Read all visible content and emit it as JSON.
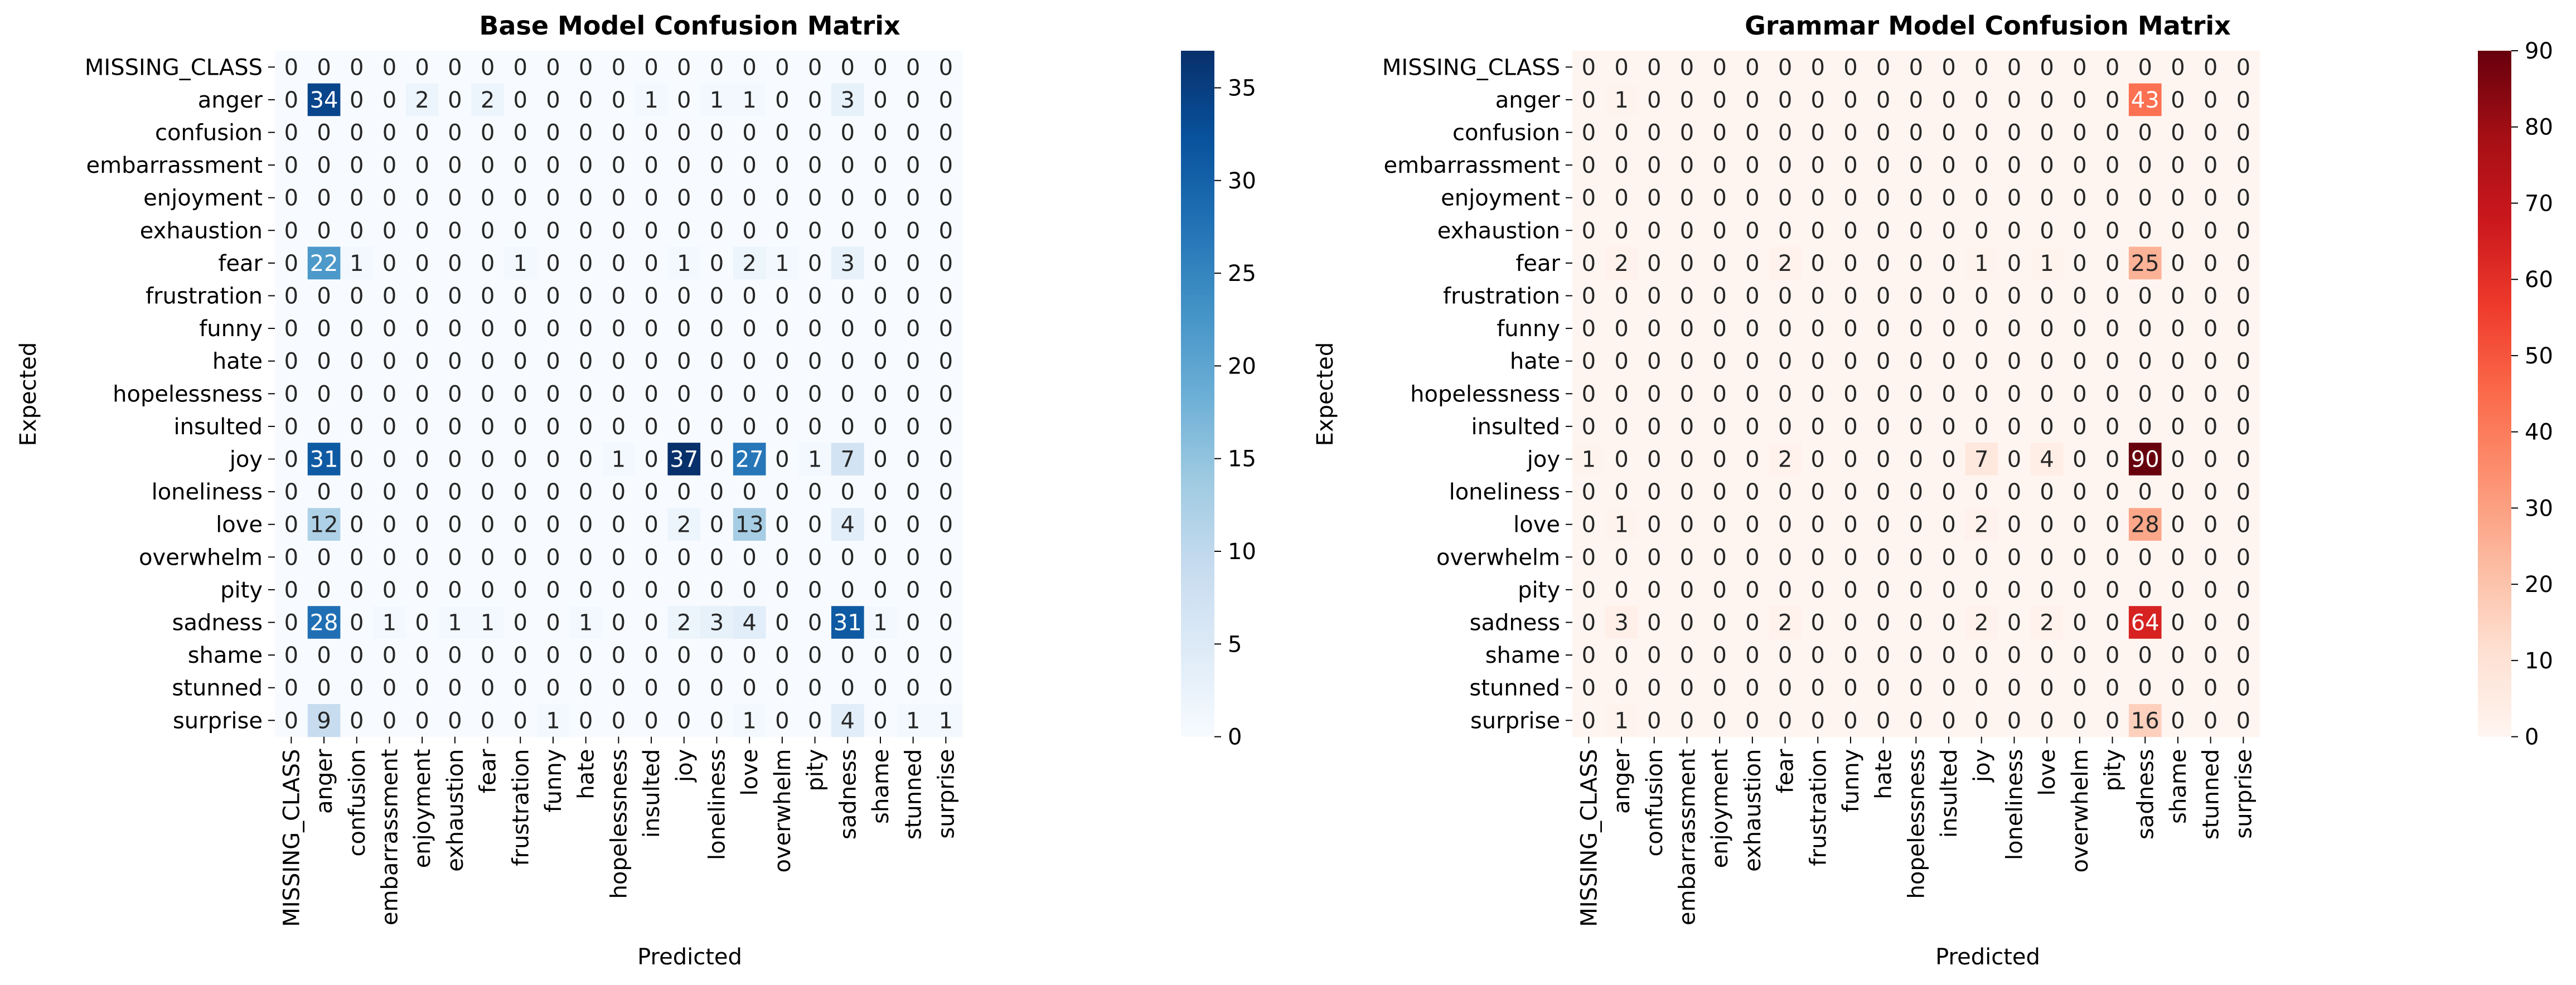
{
  "chart_data": [
    {
      "type": "heatmap",
      "title": "Base Model Confusion Matrix",
      "xlabel": "Predicted",
      "ylabel": "Expected",
      "colormap": "Blues",
      "colors": {
        "low": "#f7fbff",
        "high": "#08306b"
      },
      "vmin": 0,
      "vmax": 37,
      "colorbar_ticks": [
        0,
        5,
        10,
        15,
        20,
        25,
        30,
        35
      ],
      "x_labels": [
        "MISSING_CLASS",
        "anger",
        "confusion",
        "embarrassment",
        "enjoyment",
        "exhaustion",
        "fear",
        "frustration",
        "funny",
        "hate",
        "hopelessness",
        "insulted",
        "joy",
        "loneliness",
        "love",
        "overwhelm",
        "pity",
        "sadness",
        "shame",
        "stunned",
        "surprise"
      ],
      "y_labels": [
        "MISSING_CLASS",
        "anger",
        "confusion",
        "embarrassment",
        "enjoyment",
        "exhaustion",
        "fear",
        "frustration",
        "funny",
        "hate",
        "hopelessness",
        "insulted",
        "joy",
        "loneliness",
        "love",
        "overwhelm",
        "pity",
        "sadness",
        "shame",
        "stunned",
        "surprise"
      ],
      "values": [
        [
          0,
          0,
          0,
          0,
          0,
          0,
          0,
          0,
          0,
          0,
          0,
          0,
          0,
          0,
          0,
          0,
          0,
          0,
          0,
          0,
          0
        ],
        [
          0,
          34,
          0,
          0,
          2,
          0,
          2,
          0,
          0,
          0,
          0,
          1,
          0,
          1,
          1,
          0,
          0,
          3,
          0,
          0,
          0
        ],
        [
          0,
          0,
          0,
          0,
          0,
          0,
          0,
          0,
          0,
          0,
          0,
          0,
          0,
          0,
          0,
          0,
          0,
          0,
          0,
          0,
          0
        ],
        [
          0,
          0,
          0,
          0,
          0,
          0,
          0,
          0,
          0,
          0,
          0,
          0,
          0,
          0,
          0,
          0,
          0,
          0,
          0,
          0,
          0
        ],
        [
          0,
          0,
          0,
          0,
          0,
          0,
          0,
          0,
          0,
          0,
          0,
          0,
          0,
          0,
          0,
          0,
          0,
          0,
          0,
          0,
          0
        ],
        [
          0,
          0,
          0,
          0,
          0,
          0,
          0,
          0,
          0,
          0,
          0,
          0,
          0,
          0,
          0,
          0,
          0,
          0,
          0,
          0,
          0
        ],
        [
          0,
          22,
          1,
          0,
          0,
          0,
          0,
          1,
          0,
          0,
          0,
          0,
          1,
          0,
          2,
          1,
          0,
          3,
          0,
          0,
          0
        ],
        [
          0,
          0,
          0,
          0,
          0,
          0,
          0,
          0,
          0,
          0,
          0,
          0,
          0,
          0,
          0,
          0,
          0,
          0,
          0,
          0,
          0
        ],
        [
          0,
          0,
          0,
          0,
          0,
          0,
          0,
          0,
          0,
          0,
          0,
          0,
          0,
          0,
          0,
          0,
          0,
          0,
          0,
          0,
          0
        ],
        [
          0,
          0,
          0,
          0,
          0,
          0,
          0,
          0,
          0,
          0,
          0,
          0,
          0,
          0,
          0,
          0,
          0,
          0,
          0,
          0,
          0
        ],
        [
          0,
          0,
          0,
          0,
          0,
          0,
          0,
          0,
          0,
          0,
          0,
          0,
          0,
          0,
          0,
          0,
          0,
          0,
          0,
          0,
          0
        ],
        [
          0,
          0,
          0,
          0,
          0,
          0,
          0,
          0,
          0,
          0,
          0,
          0,
          0,
          0,
          0,
          0,
          0,
          0,
          0,
          0,
          0
        ],
        [
          0,
          31,
          0,
          0,
          0,
          0,
          0,
          0,
          0,
          0,
          1,
          0,
          37,
          0,
          27,
          0,
          1,
          7,
          0,
          0,
          0
        ],
        [
          0,
          0,
          0,
          0,
          0,
          0,
          0,
          0,
          0,
          0,
          0,
          0,
          0,
          0,
          0,
          0,
          0,
          0,
          0,
          0,
          0
        ],
        [
          0,
          12,
          0,
          0,
          0,
          0,
          0,
          0,
          0,
          0,
          0,
          0,
          2,
          0,
          13,
          0,
          0,
          4,
          0,
          0,
          0
        ],
        [
          0,
          0,
          0,
          0,
          0,
          0,
          0,
          0,
          0,
          0,
          0,
          0,
          0,
          0,
          0,
          0,
          0,
          0,
          0,
          0,
          0
        ],
        [
          0,
          0,
          0,
          0,
          0,
          0,
          0,
          0,
          0,
          0,
          0,
          0,
          0,
          0,
          0,
          0,
          0,
          0,
          0,
          0,
          0
        ],
        [
          0,
          28,
          0,
          1,
          0,
          1,
          1,
          0,
          0,
          1,
          0,
          0,
          2,
          3,
          4,
          0,
          0,
          31,
          1,
          0,
          0
        ],
        [
          0,
          0,
          0,
          0,
          0,
          0,
          0,
          0,
          0,
          0,
          0,
          0,
          0,
          0,
          0,
          0,
          0,
          0,
          0,
          0,
          0
        ],
        [
          0,
          0,
          0,
          0,
          0,
          0,
          0,
          0,
          0,
          0,
          0,
          0,
          0,
          0,
          0,
          0,
          0,
          0,
          0,
          0,
          0
        ],
        [
          0,
          9,
          0,
          0,
          0,
          0,
          0,
          0,
          1,
          0,
          0,
          0,
          0,
          0,
          1,
          0,
          0,
          4,
          0,
          1,
          1
        ]
      ]
    },
    {
      "type": "heatmap",
      "title": "Grammar Model Confusion Matrix",
      "xlabel": "Predicted",
      "ylabel": "Expected",
      "colormap": "Reds",
      "colors": {
        "low": "#fff5f0",
        "high": "#67000d"
      },
      "vmin": 0,
      "vmax": 90,
      "colorbar_ticks": [
        0,
        10,
        20,
        30,
        40,
        50,
        60,
        70,
        80,
        90
      ],
      "x_labels": [
        "MISSING_CLASS",
        "anger",
        "confusion",
        "embarrassment",
        "enjoyment",
        "exhaustion",
        "fear",
        "frustration",
        "funny",
        "hate",
        "hopelessness",
        "insulted",
        "joy",
        "loneliness",
        "love",
        "overwhelm",
        "pity",
        "sadness",
        "shame",
        "stunned",
        "surprise"
      ],
      "y_labels": [
        "MISSING_CLASS",
        "anger",
        "confusion",
        "embarrassment",
        "enjoyment",
        "exhaustion",
        "fear",
        "frustration",
        "funny",
        "hate",
        "hopelessness",
        "insulted",
        "joy",
        "loneliness",
        "love",
        "overwhelm",
        "pity",
        "sadness",
        "shame",
        "stunned",
        "surprise"
      ],
      "values": [
        [
          0,
          0,
          0,
          0,
          0,
          0,
          0,
          0,
          0,
          0,
          0,
          0,
          0,
          0,
          0,
          0,
          0,
          0,
          0,
          0,
          0
        ],
        [
          0,
          1,
          0,
          0,
          0,
          0,
          0,
          0,
          0,
          0,
          0,
          0,
          0,
          0,
          0,
          0,
          0,
          43,
          0,
          0,
          0
        ],
        [
          0,
          0,
          0,
          0,
          0,
          0,
          0,
          0,
          0,
          0,
          0,
          0,
          0,
          0,
          0,
          0,
          0,
          0,
          0,
          0,
          0
        ],
        [
          0,
          0,
          0,
          0,
          0,
          0,
          0,
          0,
          0,
          0,
          0,
          0,
          0,
          0,
          0,
          0,
          0,
          0,
          0,
          0,
          0
        ],
        [
          0,
          0,
          0,
          0,
          0,
          0,
          0,
          0,
          0,
          0,
          0,
          0,
          0,
          0,
          0,
          0,
          0,
          0,
          0,
          0,
          0
        ],
        [
          0,
          0,
          0,
          0,
          0,
          0,
          0,
          0,
          0,
          0,
          0,
          0,
          0,
          0,
          0,
          0,
          0,
          0,
          0,
          0,
          0
        ],
        [
          0,
          2,
          0,
          0,
          0,
          0,
          2,
          0,
          0,
          0,
          0,
          0,
          1,
          0,
          1,
          0,
          0,
          25,
          0,
          0,
          0
        ],
        [
          0,
          0,
          0,
          0,
          0,
          0,
          0,
          0,
          0,
          0,
          0,
          0,
          0,
          0,
          0,
          0,
          0,
          0,
          0,
          0,
          0
        ],
        [
          0,
          0,
          0,
          0,
          0,
          0,
          0,
          0,
          0,
          0,
          0,
          0,
          0,
          0,
          0,
          0,
          0,
          0,
          0,
          0,
          0
        ],
        [
          0,
          0,
          0,
          0,
          0,
          0,
          0,
          0,
          0,
          0,
          0,
          0,
          0,
          0,
          0,
          0,
          0,
          0,
          0,
          0,
          0
        ],
        [
          0,
          0,
          0,
          0,
          0,
          0,
          0,
          0,
          0,
          0,
          0,
          0,
          0,
          0,
          0,
          0,
          0,
          0,
          0,
          0,
          0
        ],
        [
          0,
          0,
          0,
          0,
          0,
          0,
          0,
          0,
          0,
          0,
          0,
          0,
          0,
          0,
          0,
          0,
          0,
          0,
          0,
          0,
          0
        ],
        [
          1,
          0,
          0,
          0,
          0,
          0,
          2,
          0,
          0,
          0,
          0,
          0,
          7,
          0,
          4,
          0,
          0,
          90,
          0,
          0,
          0
        ],
        [
          0,
          0,
          0,
          0,
          0,
          0,
          0,
          0,
          0,
          0,
          0,
          0,
          0,
          0,
          0,
          0,
          0,
          0,
          0,
          0,
          0
        ],
        [
          0,
          1,
          0,
          0,
          0,
          0,
          0,
          0,
          0,
          0,
          0,
          0,
          2,
          0,
          0,
          0,
          0,
          28,
          0,
          0,
          0
        ],
        [
          0,
          0,
          0,
          0,
          0,
          0,
          0,
          0,
          0,
          0,
          0,
          0,
          0,
          0,
          0,
          0,
          0,
          0,
          0,
          0,
          0
        ],
        [
          0,
          0,
          0,
          0,
          0,
          0,
          0,
          0,
          0,
          0,
          0,
          0,
          0,
          0,
          0,
          0,
          0,
          0,
          0,
          0,
          0
        ],
        [
          0,
          3,
          0,
          0,
          0,
          0,
          2,
          0,
          0,
          0,
          0,
          0,
          2,
          0,
          2,
          0,
          0,
          64,
          0,
          0,
          0
        ],
        [
          0,
          0,
          0,
          0,
          0,
          0,
          0,
          0,
          0,
          0,
          0,
          0,
          0,
          0,
          0,
          0,
          0,
          0,
          0,
          0,
          0
        ],
        [
          0,
          0,
          0,
          0,
          0,
          0,
          0,
          0,
          0,
          0,
          0,
          0,
          0,
          0,
          0,
          0,
          0,
          0,
          0,
          0,
          0
        ],
        [
          0,
          1,
          0,
          0,
          0,
          0,
          0,
          0,
          0,
          0,
          0,
          0,
          0,
          0,
          0,
          0,
          0,
          16,
          0,
          0,
          0
        ]
      ]
    }
  ]
}
